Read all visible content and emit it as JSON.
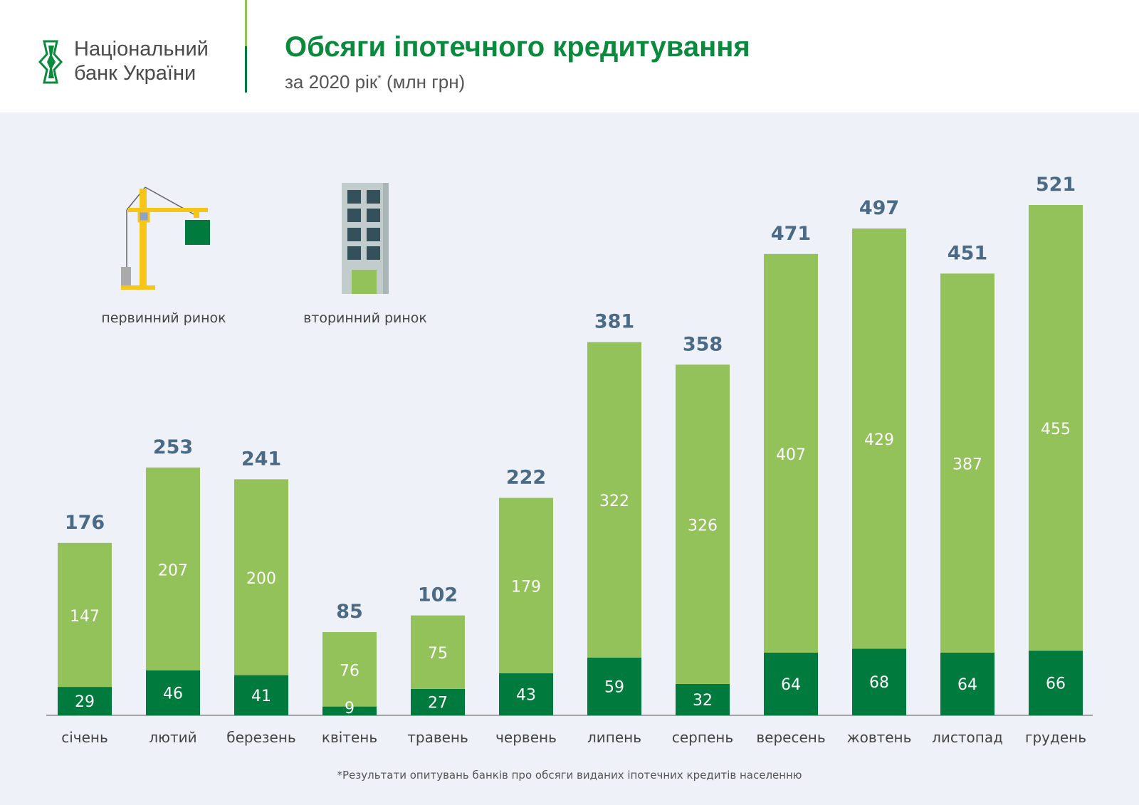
{
  "header": {
    "logo_line1": "Національний",
    "logo_line2": "банк України",
    "title": "Обсяги іпотечного кредитування",
    "subtitle": "за 2020 рік",
    "subtitle_mark": "*",
    "subtitle_unit": "(млн грн)"
  },
  "legend": [
    {
      "label": "первинний ринок",
      "icon": "crane-icon",
      "color": "#007a3d"
    },
    {
      "label": "вторинний ринок",
      "icon": "building-icon",
      "color": "#93c25a"
    }
  ],
  "footnote": "*Результати опитувань банків про обсяги виданих іпотечних кредитів населенню",
  "chart_data": {
    "type": "bar",
    "stacked": true,
    "categories": [
      "січень",
      "лютий",
      "березень",
      "квітень",
      "травень",
      "червень",
      "липень",
      "серпень",
      "вересень",
      "жовтень",
      "листопад",
      "грудень"
    ],
    "series": [
      {
        "name": "первинний ринок",
        "color": "#007a3d",
        "values": [
          29,
          46,
          41,
          9,
          27,
          43,
          59,
          32,
          64,
          68,
          64,
          66
        ]
      },
      {
        "name": "вторинний ринок",
        "color": "#93c25a",
        "values": [
          147,
          207,
          200,
          76,
          75,
          179,
          322,
          326,
          407,
          429,
          387,
          455
        ]
      }
    ],
    "totals": [
      176,
      253,
      241,
      85,
      102,
      222,
      381,
      358,
      471,
      497,
      451,
      521
    ],
    "total_label_color": "#4a6a85",
    "grid": false,
    "ylim": [
      0,
      521
    ]
  }
}
